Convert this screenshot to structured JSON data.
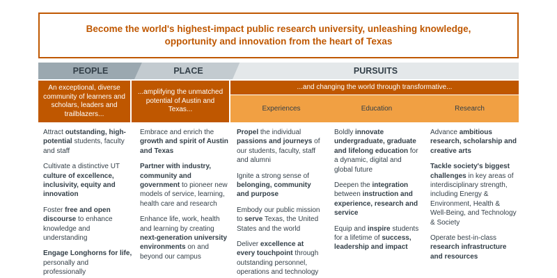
{
  "vision": {
    "text": "Become the world's highest-impact public research university, unleashing knowledge, opportunity and innovation from the heart of Texas"
  },
  "headers": {
    "people": "PEOPLE",
    "place": "PLACE",
    "pursuits": "PURSUITS"
  },
  "subheaders": {
    "people": "An exceptional, diverse community of learners and scholars, leaders and trailblazers...",
    "place": "...amplifying the unmatched potential of Austin and Texas...",
    "pursuits": "...and changing the world through transformative..."
  },
  "pillars": {
    "experiences": "Experiences",
    "education": "Education",
    "research": "Research"
  },
  "columns": {
    "people": [
      [
        {
          "t": "Attract "
        },
        {
          "t": "outstanding, high-potential",
          "b": true
        },
        {
          "t": " students, faculty and staff"
        }
      ],
      [
        {
          "t": "Cultivate a distinctive UT "
        },
        {
          "t": "culture of excellence, inclusivity, equity and innovation",
          "b": true
        }
      ],
      [
        {
          "t": "Foster "
        },
        {
          "t": "free and open discourse",
          "b": true
        },
        {
          "t": " to enhance knowledge and understanding"
        }
      ],
      [
        {
          "t": "Engage Longhorns for life,",
          "b": true
        },
        {
          "t": " personally and professionally"
        }
      ]
    ],
    "place": [
      [
        {
          "t": "Embrace and enrich the "
        },
        {
          "t": "growth and spirit of Austin and Texas",
          "b": true
        }
      ],
      [
        {
          "t": "Partner with industry, community and government",
          "b": true
        },
        {
          "t": " to pioneer new models of service, learning, health care and research"
        }
      ],
      [
        {
          "t": "Enhance life, work, health and learning by creating "
        },
        {
          "t": "next-generation university environments",
          "b": true
        },
        {
          "t": " on and beyond our campus"
        }
      ]
    ],
    "experiences": [
      [
        {
          "t": "Propel",
          "b": true
        },
        {
          "t": " the individual "
        },
        {
          "t": "passions and journeys",
          "b": true
        },
        {
          "t": " of our students, faculty, staff and alumni"
        }
      ],
      [
        {
          "t": "Ignite a strong sense of "
        },
        {
          "t": "belonging, community and purpose",
          "b": true
        }
      ],
      [
        {
          "t": "Embody our public mission to "
        },
        {
          "t": "serve",
          "b": true
        },
        {
          "t": " Texas, the United States and the world"
        }
      ],
      [
        {
          "t": "Deliver "
        },
        {
          "t": "excellence at every touchpoint",
          "b": true
        },
        {
          "t": " through outstanding personnel, operations and technology"
        }
      ]
    ],
    "education": [
      [
        {
          "t": "Boldly "
        },
        {
          "t": "innovate undergraduate, graduate and lifelong education",
          "b": true
        },
        {
          "t": " for a dynamic, digital and global future"
        }
      ],
      [
        {
          "t": "Deepen the "
        },
        {
          "t": "integration",
          "b": true
        },
        {
          "t": " between "
        },
        {
          "t": "instruction and experience, research and service",
          "b": true
        }
      ],
      [
        {
          "t": "Equip and "
        },
        {
          "t": "inspire",
          "b": true
        },
        {
          "t": " students for a lifetime of "
        },
        {
          "t": "success, leadership and impact",
          "b": true
        }
      ]
    ],
    "research": [
      [
        {
          "t": "Advance "
        },
        {
          "t": "ambitious research, scholarship and creative arts",
          "b": true
        }
      ],
      [
        {
          "t": "Tackle society's biggest challenges",
          "b": true
        },
        {
          "t": " in key areas of interdisciplinary strength, including Energy & Environment, Health & Well-Being, and Technology & Society"
        }
      ],
      [
        {
          "t": "Operate best-in-class "
        },
        {
          "t": "research infrastructure and resources",
          "b": true
        }
      ]
    ]
  }
}
